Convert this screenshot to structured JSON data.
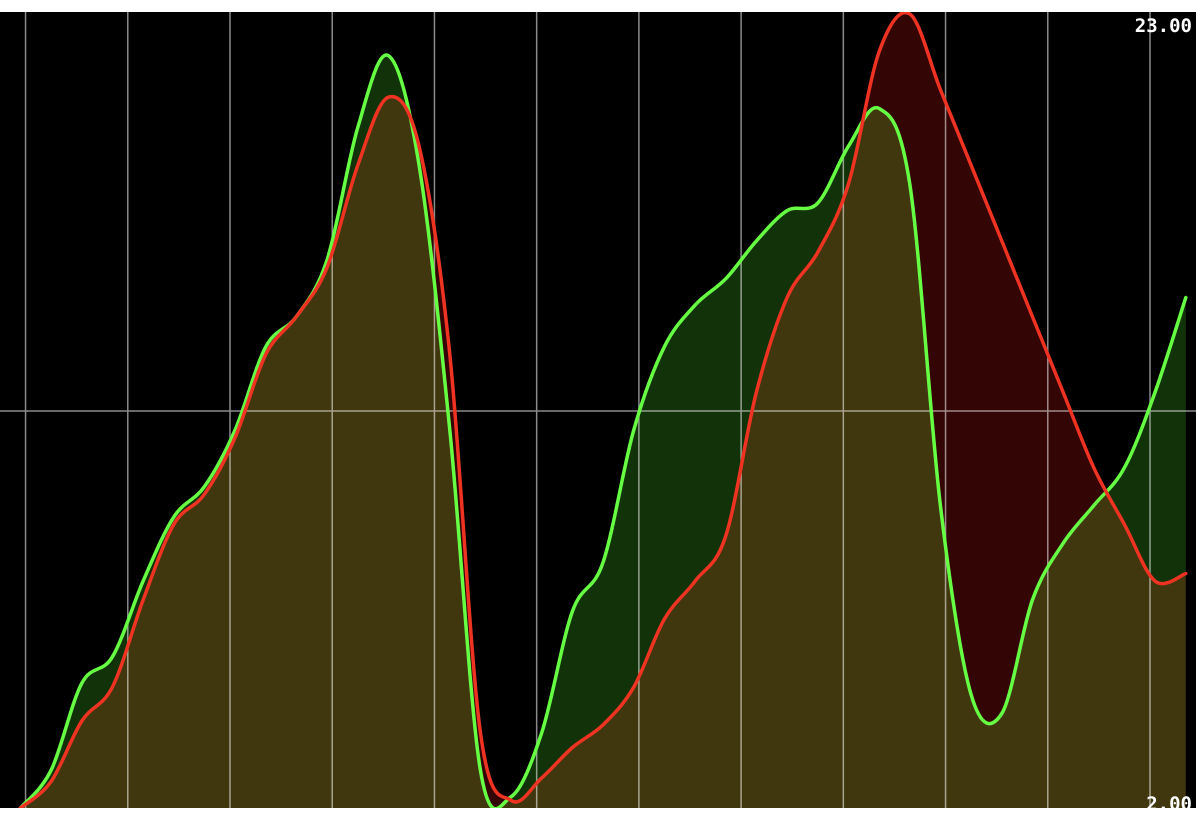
{
  "chart_data": {
    "type": "area",
    "title": "",
    "xlabel": "",
    "ylabel": "",
    "y_max_label": "23.00",
    "y_min_label": "2.00",
    "ylim": [
      2.0,
      23.0
    ],
    "xlim": [
      0,
      117
    ],
    "grid": true,
    "vertical_grid_x": [
      2.5,
      12.5,
      22.5,
      32.5,
      42.5,
      52.5,
      62.5,
      72.5,
      82.5,
      92.5,
      102.5,
      112.5
    ],
    "horizontal_grid_y": [
      12.5
    ],
    "x": [
      2,
      5,
      8,
      11,
      14,
      17,
      20,
      23,
      26,
      29,
      32,
      35,
      38,
      41,
      44,
      47,
      50,
      53,
      56,
      59,
      62,
      65,
      68,
      71,
      74,
      77,
      80,
      83,
      86,
      89,
      92,
      95,
      98,
      101,
      104,
      107,
      110,
      113,
      116
    ],
    "series": [
      {
        "color": "#66ff44",
        "fill": "#123309",
        "values": [
          2.0,
          3.0,
          5.3,
          6.0,
          8.0,
          9.7,
          10.5,
          12.0,
          14.2,
          15.0,
          16.5,
          20.0,
          21.9,
          19.0,
          12.0,
          3.0,
          2.3,
          4.0,
          7.2,
          8.5,
          12.0,
          14.2,
          15.3,
          16.0,
          17.0,
          17.8,
          18.0,
          19.5,
          20.5,
          18.5,
          10.0,
          5.0,
          4.5,
          7.5,
          9.0,
          10.0,
          11.0,
          13.0,
          15.5
        ]
      },
      {
        "color": "#ee3322",
        "fill": "#330505",
        "values": [
          2.0,
          2.7,
          4.3,
          5.2,
          7.5,
          9.5,
          10.3,
          11.8,
          14.0,
          15.0,
          16.3,
          19.0,
          20.8,
          19.5,
          14.0,
          4.0,
          2.2,
          2.8,
          3.6,
          4.2,
          5.2,
          7.0,
          8.0,
          9.2,
          13.0,
          15.5,
          16.7,
          18.5,
          22.0,
          23.0,
          21.0,
          19.0,
          17.0,
          15.0,
          13.0,
          11.0,
          9.5,
          8.0,
          8.2
        ]
      }
    ]
  }
}
